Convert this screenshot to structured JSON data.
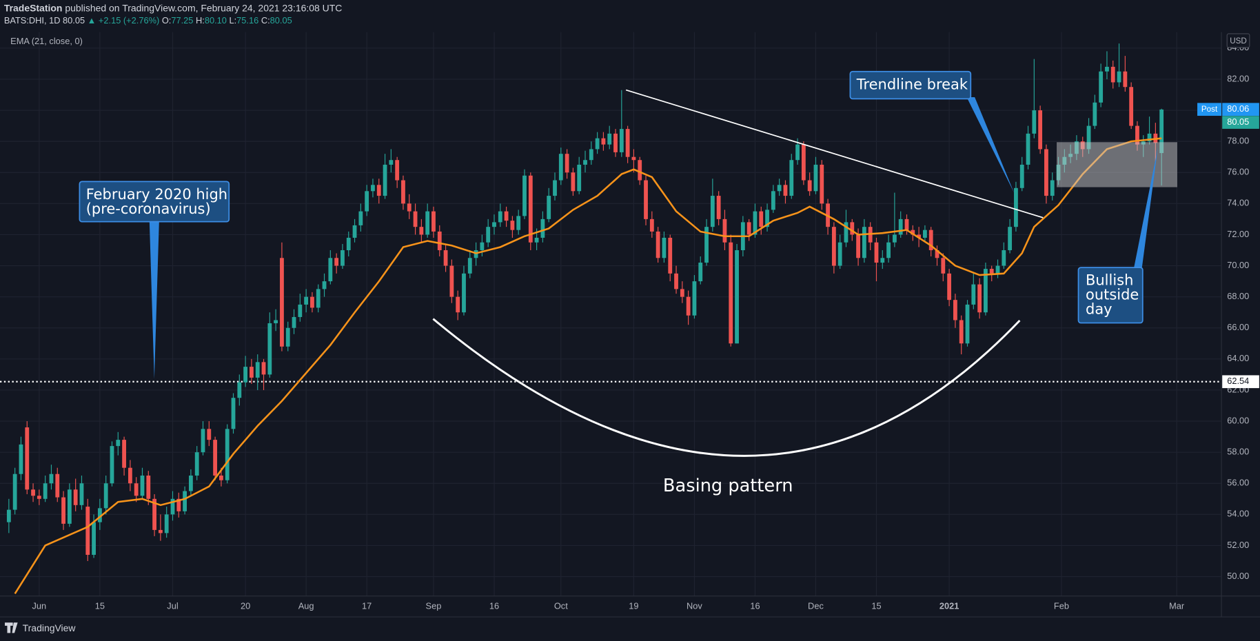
{
  "chart_data": {
    "type": "candlestick",
    "publisher": "TradeStation",
    "published": "published on TradingView.com, February 24, 2021 23:16:08 UTC",
    "symbol": "BATS:DHI, 1D",
    "price": "80.05",
    "change": "▲ +2.15 (+2.76%)",
    "legend_ohlc": [
      {
        "key": "O:",
        "value": "77.25"
      },
      {
        "key": "H:",
        "value": "80.10"
      },
      {
        "key": "L:",
        "value": "75.16"
      },
      {
        "key": "C:",
        "value": "80.05"
      }
    ],
    "indicator": "EMA (21, close, 0)",
    "currency": "USD",
    "up_color": "#26a69a",
    "down_color": "#ef5350",
    "ohlc": [
      [
        53.5,
        55.0,
        52.8,
        54.3
      ],
      [
        54.3,
        57.0,
        54.0,
        56.6
      ],
      [
        56.6,
        59.0,
        56.2,
        58.5
      ],
      [
        59.6,
        60.0,
        55.3,
        55.6
      ],
      [
        55.6,
        56.0,
        54.8,
        55.2
      ],
      [
        55.2,
        55.6,
        54.6,
        55.0
      ],
      [
        55.0,
        56.5,
        54.8,
        56.0
      ],
      [
        56.0,
        57.2,
        55.6,
        56.6
      ],
      [
        56.6,
        57.0,
        54.8,
        55.1
      ],
      [
        55.1,
        55.5,
        53.0,
        53.4
      ],
      [
        53.4,
        56.0,
        53.2,
        55.6
      ],
      [
        55.6,
        56.3,
        54.2,
        54.6
      ],
      [
        54.6,
        56.5,
        54.3,
        56.0
      ],
      [
        54.5,
        55.0,
        51.0,
        51.4
      ],
      [
        51.4,
        54.0,
        51.2,
        53.5
      ],
      [
        53.5,
        55.0,
        53.0,
        54.4
      ],
      [
        54.4,
        56.5,
        54.0,
        56.0
      ],
      [
        56.0,
        58.7,
        55.8,
        58.4
      ],
      [
        58.4,
        59.3,
        57.8,
        58.8
      ],
      [
        58.8,
        59.0,
        56.5,
        57.0
      ],
      [
        57.0,
        57.5,
        55.5,
        56.0
      ],
      [
        56.0,
        56.4,
        54.8,
        55.2
      ],
      [
        55.2,
        57.0,
        55.0,
        56.5
      ],
      [
        56.5,
        56.8,
        54.6,
        55.0
      ],
      [
        55.0,
        55.3,
        52.6,
        53.0
      ],
      [
        53.0,
        54.0,
        52.3,
        52.8
      ],
      [
        52.8,
        54.5,
        52.5,
        54.0
      ],
      [
        54.0,
        55.5,
        53.6,
        55.0
      ],
      [
        55.0,
        55.4,
        53.8,
        54.2
      ],
      [
        54.2,
        55.8,
        54.0,
        55.5
      ],
      [
        55.5,
        56.9,
        55.2,
        56.5
      ],
      [
        56.5,
        58.4,
        56.2,
        58.0
      ],
      [
        58.0,
        60.0,
        57.8,
        59.5
      ],
      [
        59.5,
        60.0,
        58.4,
        58.8
      ],
      [
        58.8,
        59.0,
        56.2,
        56.5
      ],
      [
        56.5,
        57.0,
        55.8,
        56.2
      ],
      [
        56.2,
        59.8,
        56.0,
        59.5
      ],
      [
        59.5,
        61.8,
        59.2,
        61.5
      ],
      [
        61.5,
        63.0,
        61.0,
        62.5
      ],
      [
        62.5,
        64.2,
        62.2,
        63.5
      ],
      [
        63.5,
        64.0,
        62.4,
        62.8
      ],
      [
        62.8,
        64.3,
        62.0,
        63.8
      ],
      [
        63.8,
        64.0,
        62.0,
        63.0
      ],
      [
        63.0,
        67.0,
        62.8,
        66.3
      ],
      [
        66.3,
        67.2,
        65.8,
        66.5
      ],
      [
        70.5,
        71.5,
        64.5,
        64.8
      ],
      [
        64.8,
        66.4,
        64.5,
        66.0
      ],
      [
        66.0,
        67.2,
        65.6,
        66.7
      ],
      [
        66.7,
        68.2,
        66.4,
        67.5
      ],
      [
        67.5,
        68.5,
        67.0,
        68.0
      ],
      [
        68.0,
        68.3,
        67.0,
        67.3
      ],
      [
        67.3,
        68.8,
        67.0,
        68.5
      ],
      [
        68.5,
        69.5,
        68.0,
        69.0
      ],
      [
        69.0,
        71.0,
        68.8,
        70.5
      ],
      [
        70.5,
        70.8,
        69.5,
        70.0
      ],
      [
        70.0,
        71.4,
        69.8,
        71.0
      ],
      [
        71.0,
        72.2,
        70.6,
        71.8
      ],
      [
        71.8,
        73.0,
        71.5,
        72.6
      ],
      [
        72.6,
        74.0,
        72.2,
        73.5
      ],
      [
        73.5,
        75.2,
        73.2,
        74.8
      ],
      [
        74.8,
        75.6,
        74.4,
        75.2
      ],
      [
        75.2,
        75.6,
        74.0,
        74.5
      ],
      [
        74.5,
        77.2,
        74.3,
        76.5
      ],
      [
        76.5,
        77.5,
        76.0,
        76.8
      ],
      [
        76.8,
        77.0,
        75.0,
        75.5
      ],
      [
        75.5,
        75.8,
        73.6,
        74.0
      ],
      [
        74.0,
        74.6,
        73.0,
        73.5
      ],
      [
        73.5,
        74.0,
        72.0,
        72.5
      ],
      [
        72.5,
        73.0,
        71.5,
        72.0
      ],
      [
        72.0,
        74.0,
        71.8,
        73.5
      ],
      [
        73.5,
        73.8,
        71.8,
        72.2
      ],
      [
        72.2,
        72.6,
        70.6,
        71.0
      ],
      [
        71.0,
        71.4,
        69.6,
        70.0
      ],
      [
        70.0,
        70.4,
        67.6,
        68.0
      ],
      [
        68.0,
        68.4,
        66.5,
        67.0
      ],
      [
        67.0,
        70.0,
        66.8,
        69.5
      ],
      [
        69.5,
        71.0,
        69.2,
        70.5
      ],
      [
        70.5,
        71.5,
        70.0,
        71.0
      ],
      [
        71.0,
        72.0,
        70.6,
        71.5
      ],
      [
        71.5,
        73.0,
        71.2,
        72.5
      ],
      [
        72.5,
        73.3,
        72.0,
        72.8
      ],
      [
        72.8,
        74.0,
        72.5,
        73.5
      ],
      [
        73.5,
        73.8,
        72.5,
        72.9
      ],
      [
        72.9,
        73.2,
        71.8,
        72.3
      ],
      [
        72.3,
        73.6,
        72.0,
        73.2
      ],
      [
        73.2,
        76.2,
        73.0,
        75.8
      ],
      [
        75.8,
        76.0,
        71.0,
        71.5
      ],
      [
        71.5,
        72.4,
        71.0,
        71.8
      ],
      [
        71.8,
        73.5,
        71.5,
        73.0
      ],
      [
        73.0,
        75.0,
        72.8,
        74.5
      ],
      [
        74.5,
        76.0,
        74.2,
        75.5
      ],
      [
        75.5,
        77.6,
        75.2,
        77.2
      ],
      [
        77.2,
        77.5,
        75.6,
        76.0
      ],
      [
        76.0,
        76.3,
        74.5,
        74.8
      ],
      [
        74.8,
        77.0,
        74.6,
        76.5
      ],
      [
        76.5,
        77.4,
        76.0,
        76.8
      ],
      [
        76.8,
        78.0,
        76.5,
        77.5
      ],
      [
        77.5,
        78.6,
        77.2,
        78.2
      ],
      [
        78.2,
        78.6,
        77.4,
        77.8
      ],
      [
        77.8,
        79.0,
        77.5,
        78.5
      ],
      [
        78.5,
        78.8,
        77.0,
        77.3
      ],
      [
        77.3,
        81.3,
        77.0,
        78.8
      ],
      [
        78.8,
        79.0,
        76.6,
        77.0
      ],
      [
        77.0,
        77.5,
        76.0,
        76.8
      ],
      [
        76.8,
        77.0,
        75.2,
        75.5
      ],
      [
        75.5,
        75.8,
        72.6,
        73.0
      ],
      [
        73.0,
        73.5,
        71.8,
        72.2
      ],
      [
        72.2,
        72.5,
        70.2,
        70.5
      ],
      [
        70.5,
        72.2,
        70.2,
        71.8
      ],
      [
        71.8,
        72.0,
        69.0,
        69.5
      ],
      [
        69.5,
        70.0,
        68.2,
        68.5
      ],
      [
        68.5,
        69.0,
        67.6,
        68.0
      ],
      [
        68.0,
        68.4,
        66.2,
        66.8
      ],
      [
        66.8,
        69.4,
        66.6,
        69.0
      ],
      [
        69.0,
        70.6,
        68.8,
        70.2
      ],
      [
        70.2,
        73.0,
        70.0,
        72.5
      ],
      [
        72.5,
        75.6,
        72.2,
        74.5
      ],
      [
        74.5,
        74.8,
        72.6,
        73.0
      ],
      [
        73.0,
        73.6,
        71.0,
        71.5
      ],
      [
        71.5,
        72.0,
        64.8,
        65.0
      ],
      [
        65.0,
        71.4,
        65.0,
        71.0
      ],
      [
        71.0,
        73.2,
        70.6,
        72.8
      ],
      [
        72.8,
        73.0,
        71.6,
        72.0
      ],
      [
        72.0,
        74.0,
        71.8,
        73.5
      ],
      [
        73.5,
        73.8,
        72.0,
        72.5
      ],
      [
        72.5,
        74.0,
        72.2,
        73.6
      ],
      [
        73.6,
        75.2,
        73.4,
        74.8
      ],
      [
        74.8,
        75.6,
        74.5,
        75.2
      ],
      [
        75.2,
        75.5,
        74.0,
        74.5
      ],
      [
        74.5,
        77.2,
        74.3,
        76.8
      ],
      [
        76.8,
        78.2,
        76.5,
        77.8
      ],
      [
        77.8,
        78.0,
        75.2,
        75.5
      ],
      [
        75.5,
        76.0,
        74.5,
        74.8
      ],
      [
        74.8,
        77.0,
        74.6,
        76.5
      ],
      [
        76.5,
        76.8,
        73.6,
        74.0
      ],
      [
        74.0,
        74.3,
        72.0,
        72.5
      ],
      [
        72.5,
        72.8,
        69.5,
        70.0
      ],
      [
        70.0,
        72.0,
        69.8,
        71.5
      ],
      [
        71.5,
        73.6,
        71.2,
        72.8
      ],
      [
        72.8,
        73.0,
        71.6,
        72.0
      ],
      [
        72.0,
        72.4,
        70.0,
        70.5
      ],
      [
        70.5,
        73.0,
        70.2,
        72.5
      ],
      [
        72.5,
        72.8,
        71.0,
        71.5
      ],
      [
        71.5,
        71.8,
        69.0,
        70.2
      ],
      [
        70.2,
        71.0,
        69.8,
        70.5
      ],
      [
        70.5,
        72.0,
        70.2,
        71.5
      ],
      [
        71.5,
        74.7,
        71.2,
        72.0
      ],
      [
        72.0,
        73.5,
        71.8,
        73.0
      ],
      [
        73.0,
        73.3,
        72.0,
        72.3
      ],
      [
        72.3,
        72.6,
        71.6,
        72.0
      ],
      [
        72.0,
        72.5,
        71.2,
        71.8
      ],
      [
        71.8,
        72.6,
        71.5,
        72.3
      ],
      [
        72.3,
        72.5,
        70.6,
        71.0
      ],
      [
        71.0,
        71.3,
        70.0,
        70.5
      ],
      [
        70.5,
        70.8,
        69.0,
        69.5
      ],
      [
        69.5,
        69.8,
        67.4,
        67.8
      ],
      [
        67.8,
        68.2,
        66.0,
        66.5
      ],
      [
        66.5,
        66.8,
        64.3,
        65.0
      ],
      [
        65.0,
        67.8,
        64.8,
        67.5
      ],
      [
        67.5,
        69.5,
        67.2,
        68.8
      ],
      [
        68.8,
        69.2,
        66.6,
        67.0
      ],
      [
        67.0,
        70.2,
        66.8,
        69.8
      ],
      [
        69.8,
        70.0,
        69.0,
        69.5
      ],
      [
        69.5,
        70.4,
        69.2,
        70.0
      ],
      [
        70.0,
        71.5,
        69.8,
        71.0
      ],
      [
        71.0,
        73.0,
        70.8,
        72.5
      ],
      [
        72.5,
        75.4,
        72.2,
        75.0
      ],
      [
        75.0,
        77.0,
        74.8,
        76.5
      ],
      [
        76.5,
        79.0,
        76.2,
        78.5
      ],
      [
        78.5,
        83.3,
        78.2,
        80.0
      ],
      [
        80.0,
        80.3,
        77.2,
        77.5
      ],
      [
        77.5,
        77.8,
        74.0,
        74.5
      ],
      [
        74.5,
        76.0,
        74.2,
        75.5
      ],
      [
        75.5,
        77.0,
        75.2,
        76.5
      ],
      [
        76.5,
        77.5,
        76.0,
        77.0
      ],
      [
        77.0,
        77.8,
        76.6,
        77.2
      ],
      [
        77.2,
        78.4,
        76.8,
        78.0
      ],
      [
        78.0,
        78.3,
        77.0,
        77.5
      ],
      [
        77.5,
        79.5,
        77.2,
        79.0
      ],
      [
        79.0,
        81.0,
        78.8,
        80.5
      ],
      [
        80.5,
        83.0,
        80.2,
        82.5
      ],
      [
        82.5,
        83.8,
        82.0,
        82.8
      ],
      [
        82.8,
        83.2,
        81.4,
        81.8
      ],
      [
        81.8,
        84.3,
        81.5,
        82.5
      ],
      [
        82.5,
        83.5,
        81.2,
        81.5
      ],
      [
        81.5,
        81.8,
        78.8,
        79.0
      ],
      [
        79.0,
        79.3,
        77.4,
        77.8
      ],
      [
        77.8,
        78.4,
        77.0,
        78.0
      ],
      [
        78.0,
        79.6,
        77.8,
        78.5
      ],
      [
        78.5,
        79.2,
        76.6,
        77.9
      ],
      [
        77.25,
        80.1,
        75.16,
        80.05
      ]
    ],
    "ema": {
      "color": "#f7931a",
      "x": [
        1,
        6,
        13,
        18,
        22,
        25,
        29,
        33,
        37,
        41,
        45,
        49,
        53,
        57,
        61,
        65,
        69,
        73,
        77,
        81,
        85,
        89,
        93,
        97,
        101,
        103,
        106,
        110,
        114,
        118,
        122,
        126,
        130,
        132,
        136,
        140,
        144,
        148,
        152,
        156,
        160,
        164,
        167,
        169,
        173,
        177,
        181,
        185,
        190
      ],
      "values": [
        48.9,
        52,
        53.2,
        54.8,
        55,
        54.6,
        55,
        55.8,
        57.9,
        59.7,
        61.3,
        63.1,
        64.9,
        67,
        69,
        71.2,
        71.6,
        71.3,
        70.8,
        71.2,
        71.9,
        72.4,
        73.6,
        74.5,
        75.9,
        76.2,
        75.7,
        73.5,
        72.2,
        71.9,
        71.9,
        72.9,
        73.4,
        73.8,
        73,
        72,
        72.1,
        72.3,
        71.3,
        70,
        69.4,
        69.5,
        70.8,
        72.5,
        73.9,
        75.9,
        77.5,
        78,
        78.2
      ]
    },
    "xlim": [
      -1.46,
      199.87
    ],
    "ylim": [
      48.75,
      85.03
    ],
    "yticks": [
      {
        "value": 50,
        "label": "50.00"
      },
      {
        "value": 52,
        "label": "52.00"
      },
      {
        "value": 54,
        "label": "54.00"
      },
      {
        "value": 56,
        "label": "56.00"
      },
      {
        "value": 58,
        "label": "58.00"
      },
      {
        "value": 60,
        "label": "60.00"
      },
      {
        "value": 62,
        "label": "62.00"
      },
      {
        "value": 64,
        "label": "64.00"
      },
      {
        "value": 66,
        "label": "66.00"
      },
      {
        "value": 68,
        "label": "68.00"
      },
      {
        "value": 70,
        "label": "70.00"
      },
      {
        "value": 72,
        "label": "72.00"
      },
      {
        "value": 74,
        "label": "74.00"
      },
      {
        "value": 76,
        "label": "76.00"
      },
      {
        "value": 78,
        "label": "78.00"
      },
      {
        "value": 80,
        "label": "80.00"
      },
      {
        "value": 82,
        "label": "82.00"
      },
      {
        "value": 84,
        "label": "84.00"
      }
    ],
    "xticks": [
      {
        "value": 5,
        "label": "Jun"
      },
      {
        "value": 15,
        "label": "15"
      },
      {
        "value": 27,
        "label": "Jul"
      },
      {
        "value": 39,
        "label": "20"
      },
      {
        "value": 49,
        "label": "Aug"
      },
      {
        "value": 59,
        "label": "17"
      },
      {
        "value": 70,
        "label": "Sep"
      },
      {
        "value": 80,
        "label": "16"
      },
      {
        "value": 91,
        "label": "Oct"
      },
      {
        "value": 103,
        "label": "19"
      },
      {
        "value": 113,
        "label": "Nov"
      },
      {
        "value": 123,
        "label": "16"
      },
      {
        "value": 133,
        "label": "Dec"
      },
      {
        "value": 143,
        "label": "15"
      },
      {
        "value": 155,
        "label": "2021"
      },
      {
        "value": 173.5,
        "label": "Feb"
      },
      {
        "value": 192.5,
        "label": "Mar"
      }
    ],
    "grid": true,
    "hline": 62.54,
    "post": {
      "label": "Post",
      "value": 80.06
    },
    "last": 80.05,
    "annotations": {
      "february_high": [
        "February 2020 high",
        "(pre-coronavirus)"
      ],
      "trendline_break": "Trendline break",
      "bullish_outside_day": [
        "Bullish",
        "outside",
        "day"
      ],
      "basing_pattern": "Basing pattern"
    },
    "footer": "TradingView"
  }
}
